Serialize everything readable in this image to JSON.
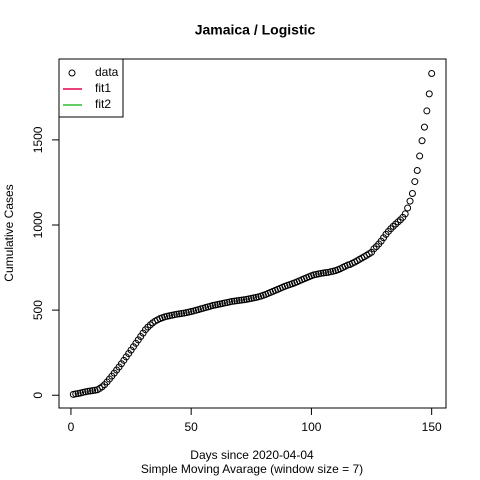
{
  "chart_data": {
    "type": "scatter",
    "title": "Jamaica / Logistic",
    "x_label": "Days since 2020-04-04",
    "subtitle": "Simple Moving Avarage (window size = 7)",
    "y_label": "Cumulative Cases",
    "xlim": [
      -4.96,
      155.96
    ],
    "ylim": [
      -75,
      1975
    ],
    "xticks": [
      0,
      50,
      100,
      150
    ],
    "yticks": [
      0,
      500,
      1000,
      1500
    ],
    "legend": "top-left",
    "series": [
      {
        "name": "data",
        "color": "#000000",
        "x": [
          1,
          2,
          3,
          4,
          5,
          6,
          7,
          8,
          9,
          10,
          11,
          12,
          13,
          14,
          15,
          16,
          17,
          18,
          19,
          20,
          21,
          22,
          23,
          24,
          25,
          26,
          27,
          28,
          29,
          30,
          31,
          32,
          33,
          34,
          35,
          36,
          37,
          38,
          39,
          40,
          41,
          42,
          43,
          44,
          45,
          46,
          47,
          48,
          49,
          50,
          51,
          52,
          53,
          54,
          55,
          56,
          57,
          58,
          59,
          60,
          61,
          62,
          63,
          64,
          65,
          66,
          67,
          68,
          69,
          70,
          71,
          72,
          73,
          74,
          75,
          76,
          77,
          78,
          79,
          80,
          81,
          82,
          83,
          84,
          85,
          86,
          87,
          88,
          89,
          90,
          91,
          92,
          93,
          94,
          95,
          96,
          97,
          98,
          99,
          100,
          101,
          102,
          103,
          104,
          105,
          106,
          107,
          108,
          109,
          110,
          111,
          112,
          113,
          114,
          115,
          116,
          117,
          118,
          119,
          120,
          121,
          122,
          123,
          124,
          125,
          126,
          127,
          128,
          129,
          130,
          131,
          132,
          133,
          134,
          135,
          136,
          137,
          138,
          139,
          140,
          141,
          142,
          143,
          144,
          145,
          146,
          147,
          148,
          149,
          150
        ],
        "values": [
          5,
          8,
          10,
          13,
          17,
          20,
          23,
          25,
          27,
          29,
          32,
          40,
          50,
          62,
          78,
          95,
          112,
          130,
          148,
          166,
          185,
          205,
          225,
          245,
          265,
          285,
          305,
          325,
          345,
          365,
          385,
          400,
          413,
          425,
          435,
          443,
          450,
          455,
          460,
          464,
          467,
          470,
          473,
          476,
          478,
          480,
          482,
          485,
          488,
          492,
          495,
          499,
          503,
          507,
          511,
          515,
          519,
          523,
          527,
          530,
          533,
          536,
          539,
          542,
          545,
          548,
          551,
          553,
          555,
          557,
          559,
          561,
          563,
          566,
          569,
          572,
          575,
          578,
          582,
          587,
          592,
          598,
          604,
          610,
          616,
          622,
          628,
          634,
          640,
          645,
          650,
          655,
          660,
          666,
          672,
          678,
          684,
          690,
          696,
          702,
          707,
          710,
          713,
          716,
          718,
          720,
          722,
          725,
          728,
          732,
          737,
          743,
          750,
          757,
          764,
          768,
          775,
          782,
          790,
          798,
          806,
          814,
          822,
          831,
          840,
          860,
          873,
          888,
          905,
          925,
          945,
          962,
          978,
          992,
          1005,
          1018,
          1030,
          1045,
          1065,
          1100,
          1140,
          1185,
          1255,
          1320,
          1405,
          1495,
          1575,
          1670,
          1770,
          1890
        ]
      },
      {
        "name": "fit1",
        "color": "#e3004f"
      },
      {
        "name": "fit2",
        "color": "#33bb33"
      }
    ]
  }
}
